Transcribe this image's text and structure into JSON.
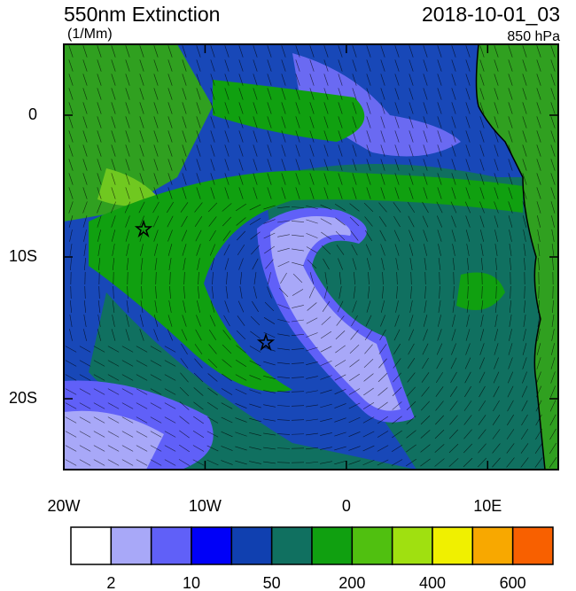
{
  "header": {
    "title": "550nm Extinction",
    "units": "(1/Mm)",
    "time": "2018-10-01_03",
    "level": "850 hPa"
  },
  "map": {
    "lon_range": [
      -20,
      15
    ],
    "lat_range": [
      -25,
      5
    ],
    "lon_ticks": [
      {
        "value": -20,
        "label": "20W"
      },
      {
        "value": -10,
        "label": "10W"
      },
      {
        "value": 0,
        "label": "0"
      },
      {
        "value": 10,
        "label": "10E"
      }
    ],
    "lat_ticks": [
      {
        "value": 0,
        "label": "0"
      },
      {
        "value": -10,
        "label": "10S"
      },
      {
        "value": -20,
        "label": "20S"
      }
    ]
  },
  "colorbar": {
    "colors": [
      "#ffffff",
      "#a8a8f8",
      "#6060f8",
      "#0000f8",
      "#1040b0",
      "#107060",
      "#10a010",
      "#50c010",
      "#a0e010",
      "#f0f000",
      "#f8a800",
      "#f86000",
      "#f80000"
    ],
    "labels": [
      "2",
      "10",
      "50",
      "200",
      "400",
      "600"
    ]
  }
}
